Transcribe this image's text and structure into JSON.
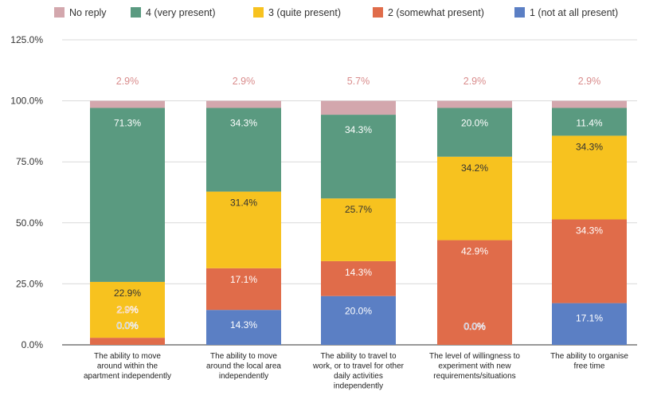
{
  "chart_data": {
    "type": "bar",
    "stacked": true,
    "title": "",
    "xlabel": "",
    "ylabel": "",
    "ylim": [
      0,
      125
    ],
    "yticks": [
      "0.0%",
      "25.0%",
      "50.0%",
      "75.0%",
      "100.0%",
      "125.0%"
    ],
    "grid": true,
    "legend_position": "top",
    "categories": [
      [
        "The ability to move",
        "around within the",
        "apartment independently"
      ],
      [
        "The ability to move",
        "around the local area",
        "independently"
      ],
      [
        "The ability to travel to",
        "work, or to travel for other",
        "daily activities",
        "independently"
      ],
      [
        "The level of willingness to",
        "experiment with new",
        "requirements/situations"
      ],
      [
        "The ability to organise",
        "free time"
      ]
    ],
    "series": [
      {
        "name": "1 (not at all present)",
        "color": "#5b7fc4",
        "values": [
          0.0,
          14.3,
          20.0,
          0.0,
          17.1
        ],
        "labels": [
          "0.0%",
          "14.3%",
          "20.0%",
          "0.0%",
          "17.1%"
        ]
      },
      {
        "name": "2 (somewhat present)",
        "color": "#e06c4a",
        "values": [
          2.9,
          17.1,
          14.3,
          42.9,
          34.3
        ],
        "labels": [
          "2.9%",
          "17.1%",
          "14.3%",
          "42.9%",
          "34.3%"
        ]
      },
      {
        "name": "3 (quite present)",
        "color": "#f7c21f",
        "values": [
          22.9,
          31.4,
          25.7,
          34.2,
          34.3
        ],
        "labels": [
          "22.9%",
          "31.4%",
          "25.7%",
          "34.2%",
          "34.3%"
        ]
      },
      {
        "name": "4 (very present)",
        "color": "#5a9a80",
        "values": [
          71.3,
          34.3,
          34.3,
          20.0,
          11.4
        ],
        "labels": [
          "71.3%",
          "34.3%",
          "34.3%",
          "20.0%",
          "11.4%"
        ]
      },
      {
        "name": "No reply",
        "color": "#d3a7ad",
        "values": [
          2.9,
          2.9,
          5.7,
          2.9,
          2.9
        ],
        "labels": [
          "2.9%",
          "2.9%",
          "5.7%",
          "2.9%",
          "2.9%"
        ]
      }
    ],
    "legend_order": [
      "No reply",
      "4 (very present)",
      "3 (quite present)",
      "2 (somewhat present)",
      "1 (not at all present)"
    ]
  }
}
